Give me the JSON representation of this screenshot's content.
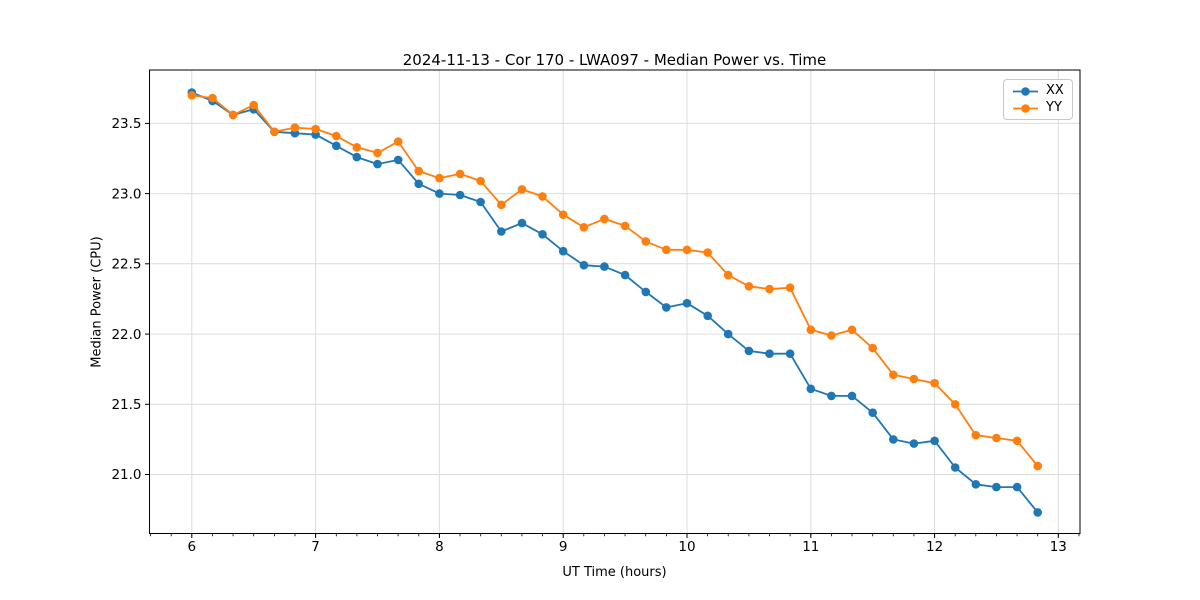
{
  "chart_data": {
    "type": "line",
    "title": "2024-11-13 - Cor 170 - LWA097 - Median Power vs. Time",
    "xlabel": "UT Time (hours)",
    "ylabel": "Median Power (CPU)",
    "grid": true,
    "legend_position": "upper right",
    "xlim": [
      5.658,
      13.175
    ],
    "ylim": [
      20.58,
      23.88
    ],
    "xticks": [
      6,
      7,
      8,
      9,
      10,
      11,
      12,
      13
    ],
    "xtick_labels": [
      "6",
      "7",
      "8",
      "9",
      "10",
      "11",
      "12",
      "13"
    ],
    "yticks": [
      21.0,
      21.5,
      22.0,
      22.5,
      23.0,
      23.5
    ],
    "ytick_labels": [
      "21.0",
      "21.5",
      "22.0",
      "22.5",
      "23.0",
      "23.5"
    ],
    "x_minor_tick_step": 0.166667,
    "x": [
      6.0,
      6.167,
      6.333,
      6.5,
      6.667,
      6.833,
      7.0,
      7.167,
      7.333,
      7.5,
      7.667,
      7.833,
      8.0,
      8.167,
      8.333,
      8.5,
      8.667,
      8.833,
      9.0,
      9.167,
      9.333,
      9.5,
      9.667,
      9.833,
      10.0,
      10.167,
      10.333,
      10.5,
      10.667,
      10.833,
      11.0,
      11.167,
      11.333,
      11.5,
      11.667,
      11.833,
      12.0,
      12.167,
      12.333,
      12.5,
      12.667,
      12.833
    ],
    "series": [
      {
        "name": "XX",
        "color": "#1f77b4",
        "marker": "circle",
        "values": [
          23.72,
          23.66,
          23.56,
          23.6,
          23.44,
          23.43,
          23.42,
          23.34,
          23.26,
          23.21,
          23.24,
          23.07,
          23.0,
          22.99,
          22.94,
          22.73,
          22.79,
          22.71,
          22.59,
          22.49,
          22.48,
          22.42,
          22.3,
          22.19,
          22.22,
          22.13,
          22.0,
          21.88,
          21.86,
          21.86,
          21.61,
          21.56,
          21.56,
          21.44,
          21.25,
          21.22,
          21.24,
          21.05,
          20.93,
          20.91,
          20.91,
          20.73
        ]
      },
      {
        "name": "YY",
        "color": "#ff7f0e",
        "marker": "circle",
        "values": [
          23.7,
          23.68,
          23.56,
          23.63,
          23.44,
          23.47,
          23.46,
          23.41,
          23.33,
          23.29,
          23.37,
          23.16,
          23.11,
          23.14,
          23.09,
          22.92,
          23.03,
          22.98,
          22.85,
          22.76,
          22.82,
          22.77,
          22.66,
          22.6,
          22.6,
          22.58,
          22.42,
          22.34,
          22.32,
          22.33,
          22.03,
          21.99,
          22.03,
          21.9,
          21.71,
          21.68,
          21.65,
          21.5,
          21.28,
          21.26,
          21.24,
          21.06
        ]
      }
    ]
  },
  "colors": {
    "grid": "#dcdcdc",
    "spine": "#000000",
    "tick": "#000000",
    "background": "#ffffff",
    "series_xx": "#1f77b4",
    "series_yy": "#ff7f0e"
  }
}
